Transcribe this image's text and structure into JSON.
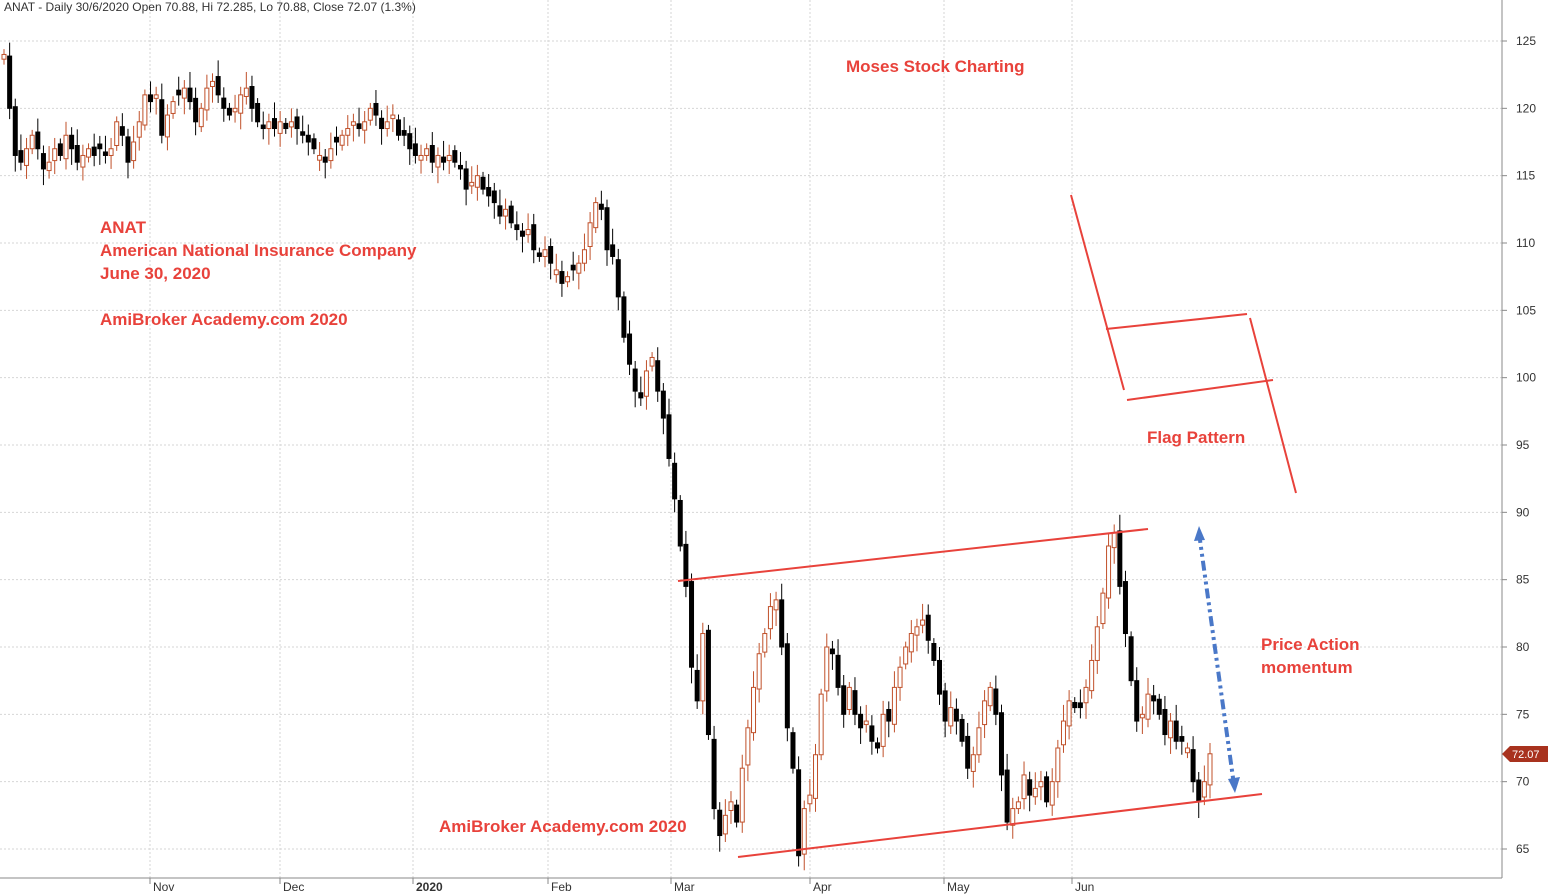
{
  "header": "ANAT - Daily 30/6/2020 Open 70.88, Hi 72.285, Lo 70.88, Close 72.07 (1.3%)",
  "annotations": {
    "moses": "Moses Stock Charting",
    "ticker": "ANAT",
    "company": "American National Insurance Company",
    "date": "June 30, 2020",
    "site1": "AmiBroker Academy.com 2020",
    "flag": "Flag Pattern",
    "momentum1": "Price Action",
    "momentum2": "momentum",
    "site2": "AmiBroker Academy.com  2020"
  },
  "colors": {
    "up": "#c0502a",
    "down": "#000000",
    "annotation": "#e8423b",
    "arrow": "#4a78c8",
    "price_tag": "#a8321e"
  },
  "chart_data": {
    "type": "candlestick",
    "y_axis_ticks": [
      65,
      70,
      75,
      80,
      85,
      90,
      95,
      100,
      105,
      110,
      115,
      120,
      125
    ],
    "ylim": [
      62,
      127
    ],
    "x_tick_labels": [
      "Nov",
      "Dec",
      "2020",
      "Feb",
      "Mar",
      "Apr",
      "May",
      "Jun"
    ],
    "last_price_label": "72.07",
    "grid": true,
    "candles_close": [
      124,
      120,
      116.5,
      116,
      117,
      118,
      117,
      115.5,
      116,
      117,
      116.5,
      118,
      117,
      116,
      116.5,
      117,
      116.5,
      117,
      116.5,
      117,
      119,
      118,
      116,
      117.5,
      119,
      121,
      120.5,
      121,
      118,
      119.5,
      120.5,
      121,
      121.5,
      120.5,
      119,
      120,
      121.5,
      122,
      121,
      120,
      119.5,
      120,
      121,
      121.5,
      120,
      119,
      118.5,
      119,
      118.5,
      119,
      118.5,
      119,
      118.5,
      118,
      117.5,
      117,
      116.5,
      116,
      117,
      117.5,
      118,
      118.5,
      119,
      118.5,
      119,
      120,
      119.5,
      118.5,
      119,
      119.5,
      118,
      118,
      117,
      116.5,
      116.5,
      117,
      116,
      116.5,
      116,
      116.5,
      116,
      115.5,
      114,
      114.5,
      115,
      114,
      113.5,
      113,
      112,
      112.5,
      111.5,
      111,
      110.5,
      111,
      109.5,
      109,
      109.5,
      108.5,
      108,
      107,
      107.5,
      108,
      108.5,
      109.5,
      111.5,
      113,
      112.5,
      109.5,
      109,
      106,
      103,
      101,
      99,
      98.5,
      100.5,
      101.5,
      99,
      97,
      94,
      91,
      87.5,
      84.5,
      78.5,
      76,
      81,
      73.5,
      68,
      66,
      67.5,
      68.5,
      67,
      71,
      74,
      77,
      79.5,
      81,
      83,
      83.5,
      80,
      74,
      71,
      64.5,
      68,
      69,
      72,
      76.5,
      80,
      79.5,
      77,
      75,
      77,
      75,
      74,
      74.5,
      73,
      72.5,
      75,
      74.5,
      77,
      78.5,
      80,
      81,
      81.5,
      82,
      80.5,
      79,
      76.5,
      74.5,
      75.5,
      74.5,
      73,
      71,
      72,
      74,
      76,
      77,
      75,
      70.5,
      67,
      68,
      68.5,
      70.5,
      69,
      69.5,
      70,
      68.5,
      70,
      72.5,
      74.5,
      76,
      75.5,
      75.5,
      77,
      79,
      81.5,
      84,
      87.5,
      88.5,
      84.5,
      81,
      77.5,
      74.5,
      75,
      76.5,
      76,
      75,
      73.5,
      74.5,
      73,
      73,
      72.5,
      70,
      68.5,
      70,
      72.07
    ]
  }
}
